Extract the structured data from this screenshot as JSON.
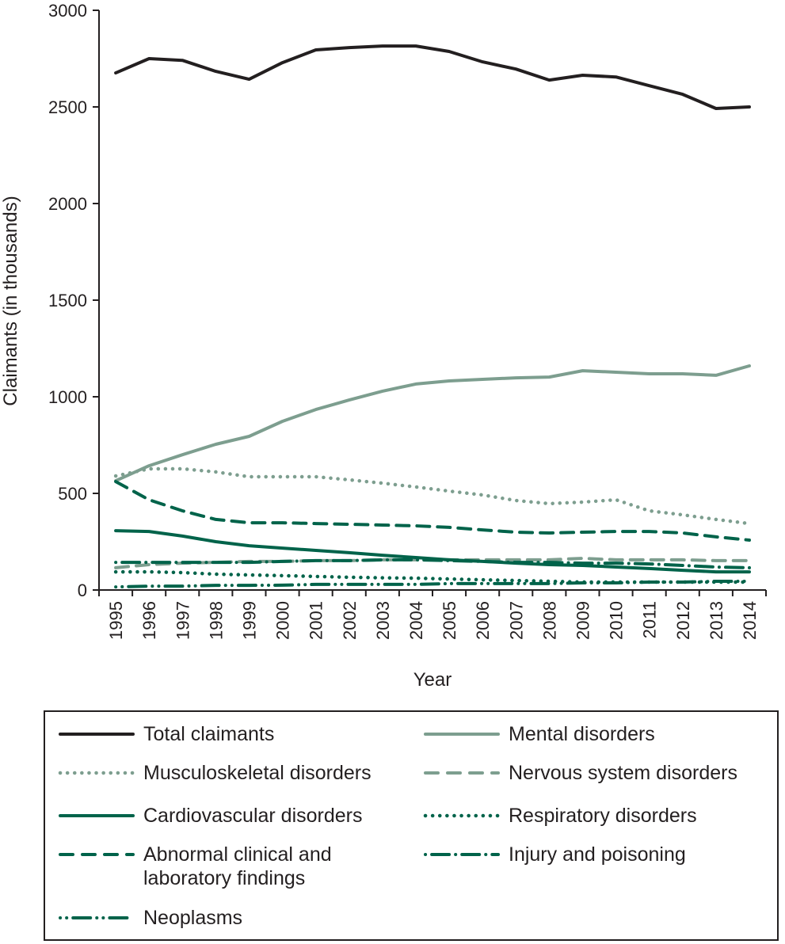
{
  "chart_data": {
    "type": "line",
    "title": "",
    "xlabel": "Year",
    "ylabel": "Claimants (in thousands)",
    "ylim": [
      0,
      3000
    ],
    "yticks": [
      0,
      500,
      1000,
      1500,
      2000,
      2500,
      3000
    ],
    "grid": false,
    "legend_position": "bottom",
    "categories": [
      "1995",
      "1996",
      "1997",
      "1998",
      "1999",
      "2000",
      "2001",
      "2002",
      "2003",
      "2004",
      "2005",
      "2006",
      "2007",
      "2008",
      "2009",
      "2010",
      "2011",
      "2012",
      "2013",
      "2014"
    ],
    "series": [
      {
        "name": "Total claimants",
        "color": "#231f20",
        "style": "solid",
        "values": [
          2676,
          2750,
          2741,
          2684,
          2643,
          2729,
          2795,
          2807,
          2815,
          2815,
          2787,
          2733,
          2696,
          2639,
          2664,
          2655,
          2610,
          2565,
          2492,
          2500
        ]
      },
      {
        "name": "Mental disorders",
        "color": "#7d9e8f",
        "style": "solid",
        "values": [
          565,
          643,
          700,
          754,
          795,
          873,
          934,
          983,
          1029,
          1066,
          1082,
          1090,
          1098,
          1102,
          1135,
          1127,
          1119,
          1119,
          1111,
          1160
        ]
      },
      {
        "name": "Musculoskeletal disorders",
        "color": "#7d9e8f",
        "style": "dotted",
        "values": [
          590,
          627,
          627,
          611,
          586,
          586,
          586,
          570,
          553,
          533,
          512,
          492,
          463,
          447,
          455,
          467,
          410,
          389,
          365,
          344
        ]
      },
      {
        "name": "Nervous system disorders",
        "color": "#7d9e8f",
        "style": "dashed",
        "values": [
          115,
          131,
          139,
          143,
          148,
          148,
          152,
          152,
          156,
          156,
          156,
          156,
          156,
          156,
          164,
          156,
          156,
          156,
          152,
          152
        ]
      },
      {
        "name": "Cardiovascular disorders",
        "color": "#00634a",
        "style": "solid",
        "values": [
          307,
          303,
          279,
          250,
          229,
          217,
          205,
          193,
          180,
          168,
          156,
          148,
          139,
          131,
          127,
          119,
          111,
          102,
          94,
          94
        ]
      },
      {
        "name": "Respiratory disorders",
        "color": "#00634a",
        "style": "dotted",
        "values": [
          94,
          94,
          90,
          82,
          78,
          74,
          70,
          66,
          63,
          61,
          57,
          53,
          49,
          45,
          41,
          41,
          41,
          41,
          41,
          41
        ]
      },
      {
        "name": "Abnormal clinical and\nlaboratory findings",
        "color": "#00634a",
        "style": "dashed",
        "values": [
          561,
          467,
          410,
          365,
          348,
          348,
          344,
          340,
          336,
          332,
          324,
          311,
          299,
          295,
          299,
          303,
          303,
          295,
          275,
          258
        ]
      },
      {
        "name": "Injury and poisoning",
        "color": "#00634a",
        "style": "dashdot",
        "values": [
          143,
          143,
          143,
          143,
          143,
          148,
          152,
          152,
          156,
          156,
          152,
          148,
          143,
          143,
          139,
          139,
          135,
          127,
          119,
          115
        ]
      },
      {
        "name": "Neoplasms",
        "color": "#00634a",
        "style": "dashdotdot",
        "values": [
          16,
          20,
          20,
          24,
          24,
          25,
          29,
          29,
          29,
          29,
          33,
          33,
          33,
          33,
          37,
          37,
          41,
          41,
          45,
          45
        ]
      }
    ]
  }
}
